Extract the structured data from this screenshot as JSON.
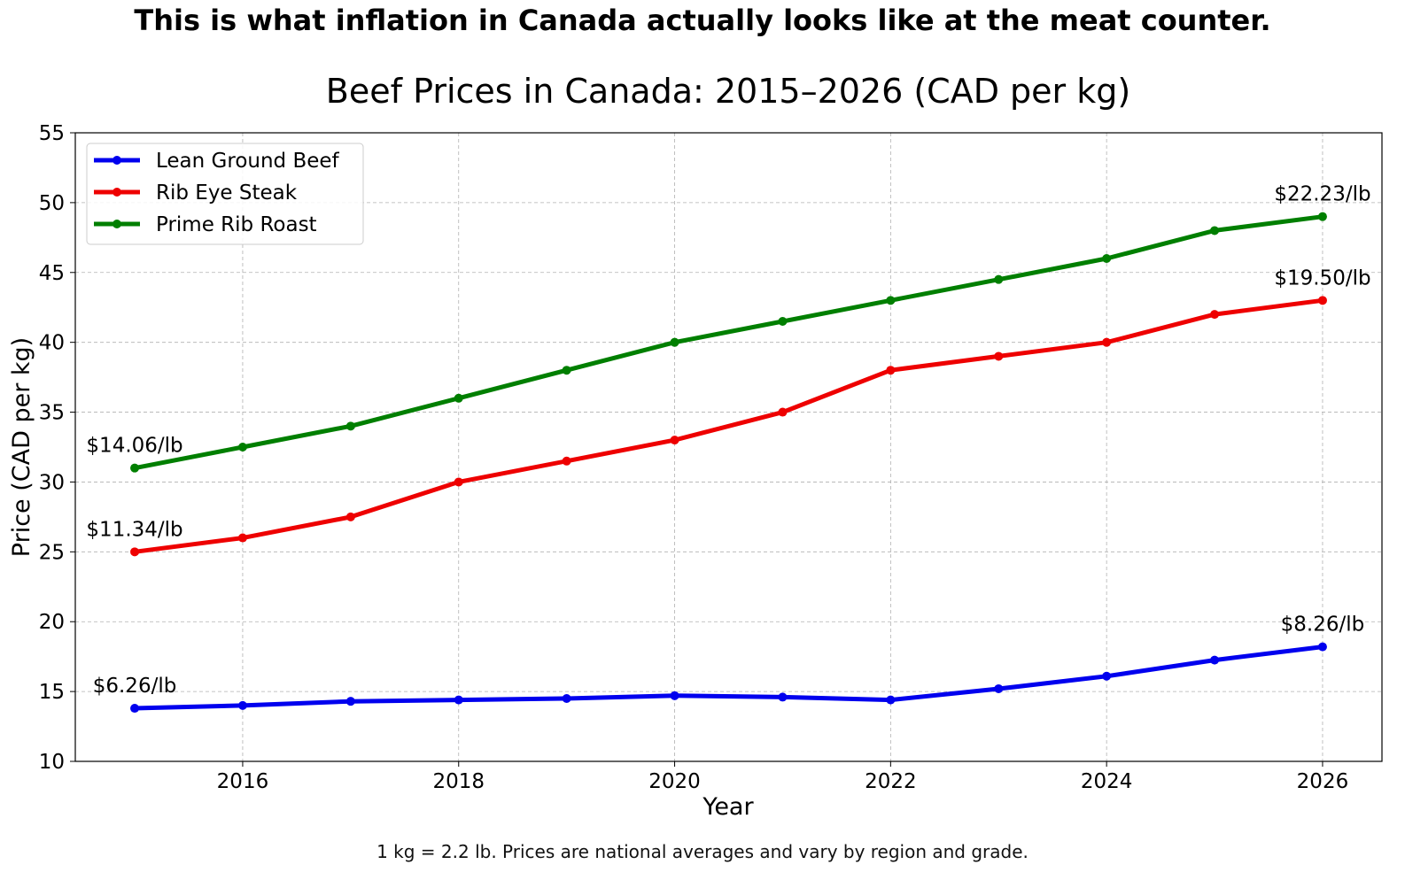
{
  "headline": "This is what inflation in Canada actually looks like at the meat counter.",
  "footnote": "1 kg = 2.2 lb. Prices are national averages and vary by region and grade.",
  "chart_data": {
    "type": "line",
    "title": "Beef Prices in Canada: 2015–2026 (CAD per kg)",
    "xlabel": "Year",
    "ylabel": "Price (CAD per kg)",
    "xlim": [
      2014.45,
      2026.55
    ],
    "ylim": [
      10,
      55
    ],
    "xticks": [
      2016,
      2018,
      2020,
      2022,
      2024,
      2026
    ],
    "yticks": [
      10,
      15,
      20,
      25,
      30,
      35,
      40,
      45,
      50,
      55
    ],
    "grid": true,
    "legend_position": "top-left",
    "x": [
      2015,
      2016,
      2017,
      2018,
      2019,
      2020,
      2021,
      2022,
      2023,
      2024,
      2025,
      2026
    ],
    "series": [
      {
        "name": "Lean Ground Beef",
        "color": "#0000ee",
        "values": [
          13.8,
          14.0,
          14.3,
          14.4,
          14.5,
          14.7,
          14.6,
          14.4,
          15.2,
          16.1,
          17.25,
          18.2
        ],
        "start_label": "$6.26/lb",
        "end_label": "$8.26/lb"
      },
      {
        "name": "Rib Eye Steak",
        "color": "#ee0000",
        "values": [
          25.0,
          26.0,
          27.5,
          30.0,
          31.5,
          33.0,
          35.0,
          38.0,
          39.0,
          40.0,
          42.0,
          43.0
        ],
        "start_label": "$11.34/lb",
        "end_label": "$19.50/lb"
      },
      {
        "name": "Prime Rib Roast",
        "color": "#007f00",
        "values": [
          31.0,
          32.5,
          34.0,
          36.0,
          38.0,
          40.0,
          41.5,
          43.0,
          44.5,
          46.0,
          48.0,
          49.0
        ],
        "start_label": "$14.06/lb",
        "end_label": "$22.23/lb"
      }
    ]
  }
}
